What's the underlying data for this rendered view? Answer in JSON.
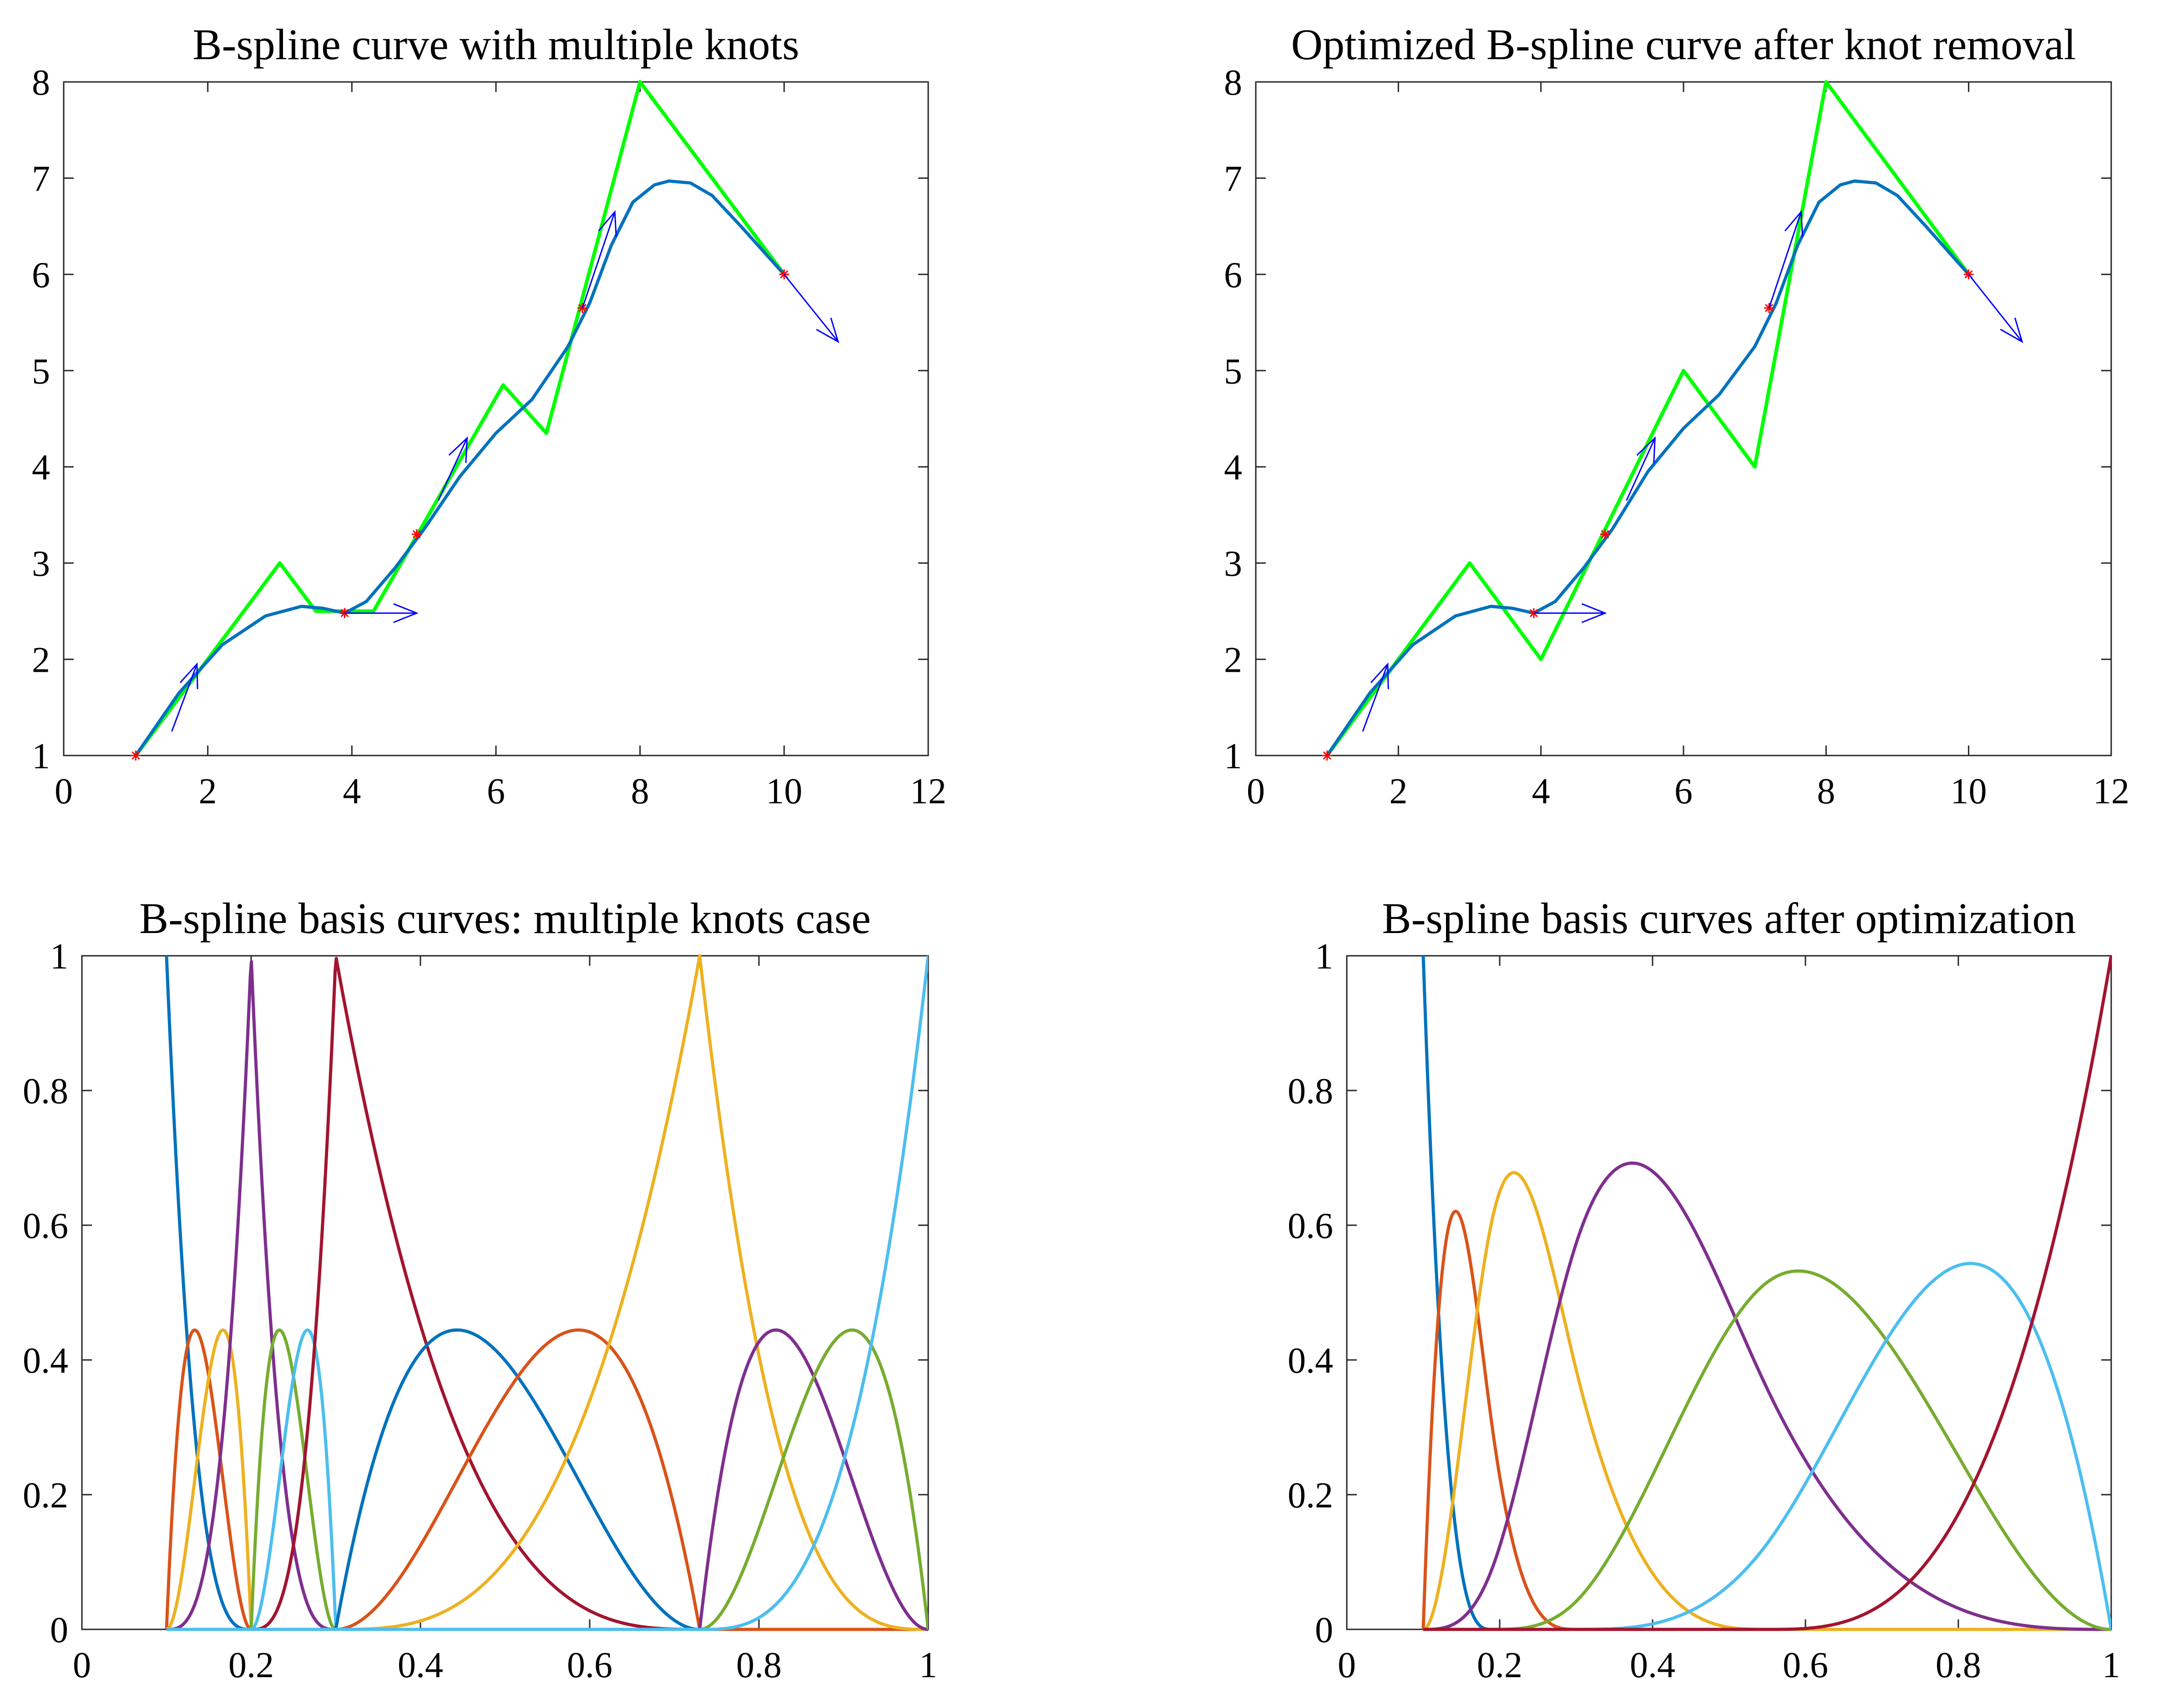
{
  "chart_data": [
    {
      "id": "p1",
      "type": "line",
      "title": "B-spline curve with multiple knots",
      "xlim": [
        0,
        12
      ],
      "ylim": [
        1,
        8
      ],
      "xticks": [
        0,
        2,
        4,
        6,
        8,
        10,
        12
      ],
      "yticks": [
        1,
        2,
        3,
        4,
        5,
        6,
        7,
        8
      ],
      "grid": false,
      "series": [
        {
          "kind": "control-polygon",
          "color": "#00ff00",
          "x": [
            1,
            3,
            3.5,
            4.3,
            6.1,
            6.7,
            8,
            10
          ],
          "y": [
            1,
            3,
            2.5,
            2.5,
            4.85,
            4.35,
            8,
            6
          ]
        },
        {
          "kind": "curve",
          "color": "#0072bd",
          "x": [
            1,
            1.6,
            2.2,
            2.8,
            3.3,
            3.6,
            3.9,
            4.2,
            4.6,
            5.0,
            5.5,
            6.0,
            6.5,
            7.0,
            7.3,
            7.6,
            7.9,
            8.2,
            8.4,
            8.7,
            9.0,
            9.4,
            9.7,
            10
          ],
          "y": [
            1,
            1.65,
            2.15,
            2.45,
            2.55,
            2.53,
            2.48,
            2.6,
            2.95,
            3.35,
            3.9,
            4.35,
            4.7,
            5.25,
            5.7,
            6.3,
            6.75,
            6.93,
            6.97,
            6.95,
            6.82,
            6.5,
            6.25,
            6
          ]
        },
        {
          "kind": "data-points",
          "color": "#ff0000",
          "x": [
            1,
            3.9,
            4.9,
            7.2,
            10
          ],
          "y": [
            1,
            2.48,
            3.3,
            5.65,
            6
          ]
        },
        {
          "kind": "tangent-arrows",
          "color": "#0000ff",
          "x": [
            1.5,
            3.9,
            5.2,
            7.2,
            10
          ],
          "y": [
            1.25,
            2.48,
            3.65,
            5.65,
            6
          ],
          "dx": [
            0.35,
            1.0,
            0.4,
            0.45,
            0.75
          ],
          "dy": [
            0.7,
            0,
            0.65,
            1.0,
            -0.7
          ]
        }
      ]
    },
    {
      "id": "p2",
      "type": "line",
      "title": "Optimized B-spline curve after knot removal",
      "xlim": [
        0,
        12
      ],
      "ylim": [
        1,
        8
      ],
      "xticks": [
        0,
        2,
        4,
        6,
        8,
        10,
        12
      ],
      "yticks": [
        1,
        2,
        3,
        4,
        5,
        6,
        7,
        8
      ],
      "grid": false,
      "series": [
        {
          "kind": "control-polygon",
          "color": "#00ff00",
          "x": [
            1,
            3,
            4,
            6,
            7,
            8,
            10
          ],
          "y": [
            1,
            3,
            2,
            5,
            4,
            8,
            6
          ]
        },
        {
          "kind": "curve",
          "color": "#0072bd",
          "x": [
            1,
            1.6,
            2.2,
            2.8,
            3.3,
            3.6,
            3.9,
            4.2,
            4.6,
            5.0,
            5.5,
            6.0,
            6.5,
            7.0,
            7.3,
            7.6,
            7.9,
            8.2,
            8.4,
            8.7,
            9.0,
            9.4,
            9.7,
            10
          ],
          "y": [
            1,
            1.65,
            2.15,
            2.45,
            2.55,
            2.53,
            2.48,
            2.6,
            2.95,
            3.35,
            3.95,
            4.4,
            4.75,
            5.25,
            5.7,
            6.3,
            6.75,
            6.93,
            6.97,
            6.95,
            6.82,
            6.5,
            6.25,
            6
          ]
        },
        {
          "kind": "data-points",
          "color": "#ff0000",
          "x": [
            1,
            3.9,
            4.9,
            7.2,
            10
          ],
          "y": [
            1,
            2.48,
            3.3,
            5.65,
            6
          ]
        },
        {
          "kind": "tangent-arrows",
          "color": "#0000ff",
          "x": [
            1.5,
            3.9,
            5.2,
            7.2,
            10
          ],
          "y": [
            1.25,
            2.48,
            3.65,
            5.65,
            6
          ],
          "dx": [
            0.35,
            1.0,
            0.4,
            0.45,
            0.75
          ],
          "dy": [
            0.7,
            0,
            0.65,
            1.0,
            -0.7
          ]
        }
      ]
    },
    {
      "id": "p3",
      "type": "line",
      "title": "B-spline basis curves: multiple knots case",
      "xlim": [
        0,
        1
      ],
      "ylim": [
        0,
        1
      ],
      "xticks": [
        0,
        0.2,
        0.4,
        0.6,
        0.8,
        1
      ],
      "yticks": [
        0,
        0.2,
        0.4,
        0.6,
        0.8,
        1
      ],
      "grid": false,
      "degree": 3,
      "knots": [
        0.1,
        0.1,
        0.1,
        0.1,
        0.2,
        0.2,
        0.2,
        0.3,
        0.3,
        0.3,
        0.73,
        0.73,
        0.73,
        1,
        1,
        1,
        1
      ],
      "colors": [
        "#0072bd",
        "#d95319",
        "#edb120",
        "#7e2f8e",
        "#77ac30",
        "#4dbeee",
        "#a2142f",
        "#0072bd",
        "#d95319",
        "#edb120",
        "#7e2f8e",
        "#77ac30",
        "#4dbeee"
      ]
    },
    {
      "id": "p4",
      "type": "line",
      "title": "B-spline basis curves after optimization",
      "xlim": [
        0,
        1
      ],
      "ylim": [
        0,
        1
      ],
      "xticks": [
        0,
        0.2,
        0.4,
        0.6,
        0.8,
        1
      ],
      "yticks": [
        0,
        0.2,
        0.4,
        0.6,
        0.8,
        1
      ],
      "grid": false,
      "degree": 3,
      "knots": [
        0.1,
        0.1,
        0.1,
        0.1,
        0.19,
        0.3,
        0.55,
        1,
        1,
        1,
        1
      ],
      "colors": [
        "#0072bd",
        "#d95319",
        "#edb120",
        "#7e2f8e",
        "#77ac30",
        "#4dbeee",
        "#a2142f"
      ]
    }
  ]
}
